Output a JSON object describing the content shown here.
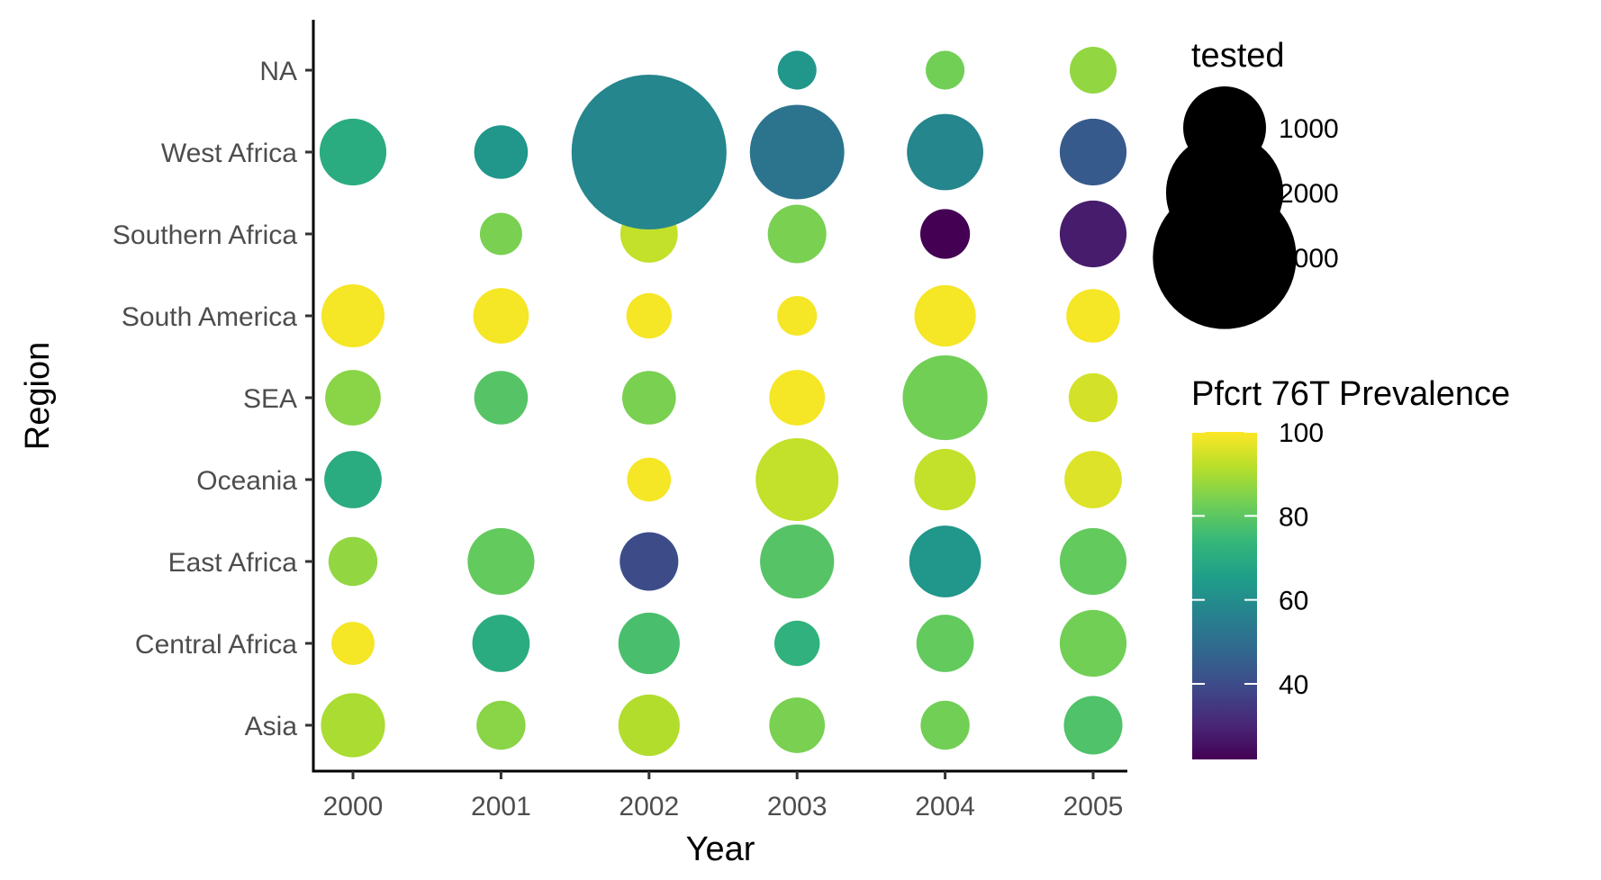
{
  "chart_data": {
    "type": "scatter",
    "xlabel": "Year",
    "ylabel": "Region",
    "x_categories": [
      "2000",
      "2001",
      "2002",
      "2003",
      "2004",
      "2005"
    ],
    "y_categories": [
      "Asia",
      "Central Africa",
      "East Africa",
      "Oceania",
      "SEA",
      "South America",
      "Southern Africa",
      "West Africa",
      "NA"
    ],
    "grid": false,
    "legend_position": "right",
    "size_legend": {
      "title": "tested",
      "values": [
        1000,
        2000,
        3000
      ],
      "labels": [
        "1000",
        "2000",
        "3000"
      ]
    },
    "color_legend": {
      "title": "Pfcrt 76T Prevalence",
      "min": 22,
      "max": 100,
      "ticks": [
        40,
        60,
        80,
        100
      ],
      "tick_labels": [
        "40",
        "60",
        "80",
        "100"
      ],
      "palette": [
        "#440154",
        "#482878",
        "#3e4a89",
        "#31688e",
        "#26828e",
        "#1f9e89",
        "#35b779",
        "#6ece58",
        "#b5de2b",
        "#fde725"
      ]
    },
    "points": [
      {
        "year": "2000",
        "region": "Asia",
        "tested": 600,
        "prevalence": 90
      },
      {
        "year": "2001",
        "region": "Asia",
        "tested": 350,
        "prevalence": 86
      },
      {
        "year": "2002",
        "region": "Asia",
        "tested": 550,
        "prevalence": 91
      },
      {
        "year": "2003",
        "region": "Asia",
        "tested": 450,
        "prevalence": 84
      },
      {
        "year": "2004",
        "region": "Asia",
        "tested": 350,
        "prevalence": 83
      },
      {
        "year": "2005",
        "region": "Asia",
        "tested": 500,
        "prevalence": 78
      },
      {
        "year": "2000",
        "region": "Central Africa",
        "tested": 270,
        "prevalence": 99
      },
      {
        "year": "2001",
        "region": "Central Africa",
        "tested": 480,
        "prevalence": 70
      },
      {
        "year": "2002",
        "region": "Central Africa",
        "tested": 550,
        "prevalence": 77
      },
      {
        "year": "2003",
        "region": "Central Africa",
        "tested": 300,
        "prevalence": 72
      },
      {
        "year": "2004",
        "region": "Central Africa",
        "tested": 480,
        "prevalence": 81
      },
      {
        "year": "2005",
        "region": "Central Africa",
        "tested": 650,
        "prevalence": 83
      },
      {
        "year": "2000",
        "region": "East Africa",
        "tested": 350,
        "prevalence": 87
      },
      {
        "year": "2001",
        "region": "East Africa",
        "tested": 650,
        "prevalence": 81
      },
      {
        "year": "2002",
        "region": "East Africa",
        "tested": 500,
        "prevalence": 40
      },
      {
        "year": "2003",
        "region": "East Africa",
        "tested": 800,
        "prevalence": 79
      },
      {
        "year": "2004",
        "region": "East Africa",
        "tested": 750,
        "prevalence": 63
      },
      {
        "year": "2005",
        "region": "East Africa",
        "tested": 650,
        "prevalence": 81
      },
      {
        "year": "2000",
        "region": "Oceania",
        "tested": 480,
        "prevalence": 70
      },
      {
        "year": "2002",
        "region": "Oceania",
        "tested": 280,
        "prevalence": 99
      },
      {
        "year": "2003",
        "region": "Oceania",
        "tested": 1000,
        "prevalence": 93
      },
      {
        "year": "2004",
        "region": "Oceania",
        "tested": 550,
        "prevalence": 93
      },
      {
        "year": "2005",
        "region": "Oceania",
        "tested": 480,
        "prevalence": 96
      },
      {
        "year": "2000",
        "region": "SEA",
        "tested": 450,
        "prevalence": 86
      },
      {
        "year": "2001",
        "region": "SEA",
        "tested": 420,
        "prevalence": 79
      },
      {
        "year": "2002",
        "region": "SEA",
        "tested": 420,
        "prevalence": 84
      },
      {
        "year": "2003",
        "region": "SEA",
        "tested": 450,
        "prevalence": 99
      },
      {
        "year": "2004",
        "region": "SEA",
        "tested": 1050,
        "prevalence": 83
      },
      {
        "year": "2005",
        "region": "SEA",
        "tested": 350,
        "prevalence": 95
      },
      {
        "year": "2000",
        "region": "South America",
        "tested": 580,
        "prevalence": 99
      },
      {
        "year": "2001",
        "region": "South America",
        "tested": 450,
        "prevalence": 99
      },
      {
        "year": "2002",
        "region": "South America",
        "tested": 300,
        "prevalence": 99
      },
      {
        "year": "2003",
        "region": "South America",
        "tested": 230,
        "prevalence": 99
      },
      {
        "year": "2004",
        "region": "South America",
        "tested": 550,
        "prevalence": 99
      },
      {
        "year": "2005",
        "region": "South America",
        "tested": 420,
        "prevalence": 99
      },
      {
        "year": "2001",
        "region": "Southern Africa",
        "tested": 260,
        "prevalence": 84
      },
      {
        "year": "2002",
        "region": "Southern Africa",
        "tested": 480,
        "prevalence": 93
      },
      {
        "year": "2003",
        "region": "Southern Africa",
        "tested": 500,
        "prevalence": 84
      },
      {
        "year": "2004",
        "region": "Southern Africa",
        "tested": 360,
        "prevalence": 22
      },
      {
        "year": "2005",
        "region": "Southern Africa",
        "tested": 650,
        "prevalence": 28
      },
      {
        "year": "2000",
        "region": "West Africa",
        "tested": 650,
        "prevalence": 70
      },
      {
        "year": "2001",
        "region": "West Africa",
        "tested": 420,
        "prevalence": 63
      },
      {
        "year": "2002",
        "region": "West Africa",
        "tested": 3500,
        "prevalence": 58
      },
      {
        "year": "2003",
        "region": "West Africa",
        "tested": 1300,
        "prevalence": 52
      },
      {
        "year": "2004",
        "region": "West Africa",
        "tested": 850,
        "prevalence": 58
      },
      {
        "year": "2005",
        "region": "West Africa",
        "tested": 650,
        "prevalence": 44
      },
      {
        "year": "2003",
        "region": "NA",
        "tested": 220,
        "prevalence": 63
      },
      {
        "year": "2004",
        "region": "NA",
        "tested": 220,
        "prevalence": 83
      },
      {
        "year": "2005",
        "region": "NA",
        "tested": 320,
        "prevalence": 87
      }
    ]
  }
}
